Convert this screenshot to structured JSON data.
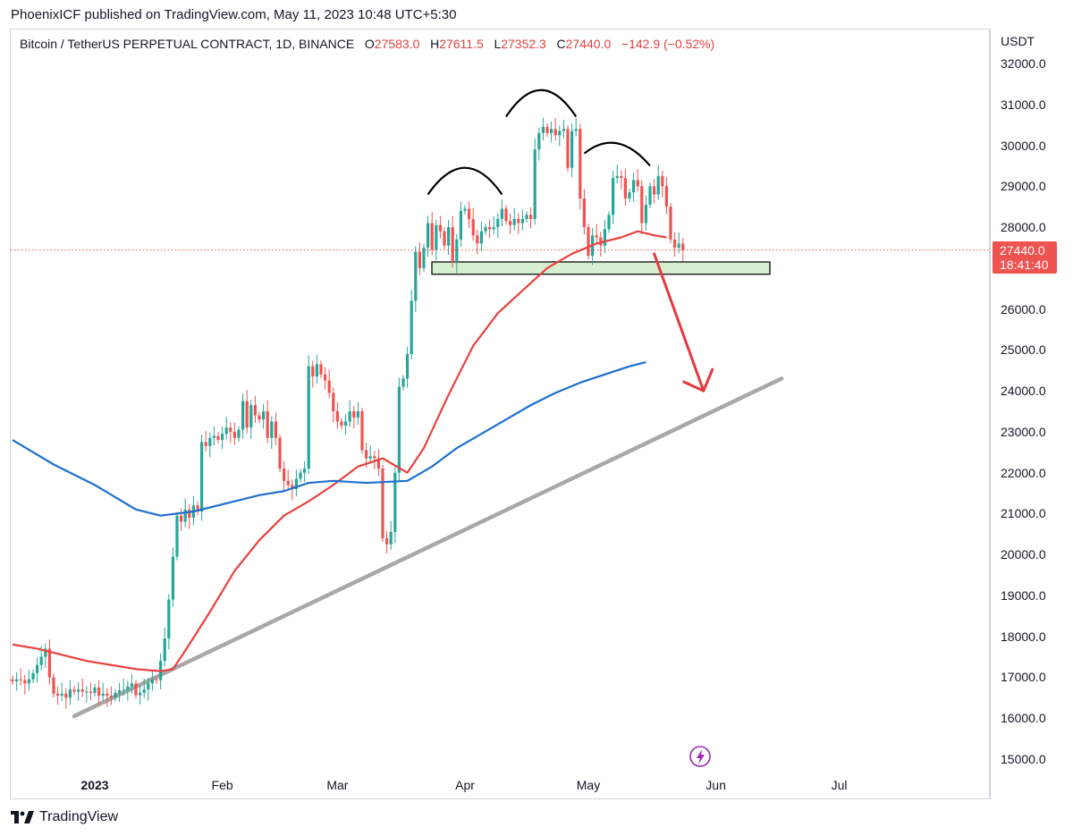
{
  "header": {
    "publish_text": "PhoenixICF published on TradingView.com, May 11, 2023 10:48 UTC+5:30"
  },
  "legend": {
    "symbol": "Bitcoin / TetherUS PERPETUAL CONTRACT, 1D, BINANCE",
    "o_key": "O",
    "o_val": "27583.0",
    "h_key": "H",
    "h_val": "27611.5",
    "l_key": "L",
    "l_val": "27352.3",
    "c_key": "C",
    "c_val": "27440.0",
    "change": "−142.9 (−0.52%)"
  },
  "price_tag": {
    "price": "27440.0",
    "countdown": "18:41:40"
  },
  "branding": {
    "label": "TradingView"
  },
  "colors": {
    "up": "#26a69a",
    "down": "#ef5350",
    "ma_fast": "#e8423e",
    "ma_slow": "#1e6fd0",
    "trendline": "#a8a8a8",
    "zone": "#d6efd1",
    "arrow": "#e53940",
    "shoulder": "#000000",
    "badge": "#9c27b0"
  },
  "chart_data": {
    "type": "candlestick",
    "currency": "USDT",
    "ylim": [
      15000,
      32000
    ],
    "y_ticks": [
      "32000.0",
      "31000.0",
      "30000.0",
      "29000.0",
      "28000.0",
      "26000.0",
      "25000.0",
      "24000.0",
      "23000.0",
      "22000.0",
      "21000.0",
      "20000.0",
      "19000.0",
      "18000.0",
      "17000.0",
      "16000.0",
      "15000.0"
    ],
    "x_ticks": [
      {
        "label": "2023",
        "date": "2023-01-01",
        "bold": true
      },
      {
        "label": "Feb",
        "date": "2023-02-01",
        "bold": false
      },
      {
        "label": "Mar",
        "date": "2023-03-01",
        "bold": false
      },
      {
        "label": "Apr",
        "date": "2023-04-01",
        "bold": false
      },
      {
        "label": "May",
        "date": "2023-05-01",
        "bold": false
      },
      {
        "label": "Jun",
        "date": "2023-06-01",
        "bold": false
      },
      {
        "label": "Jul",
        "date": "2023-07-01",
        "bold": false
      }
    ],
    "grid": false,
    "series": [
      {
        "name": "",
        "kind": "price",
        "close": [
          16900,
          16950,
          16930,
          16850,
          16950,
          17100,
          17300,
          17500,
          17700,
          17000,
          16600,
          16550,
          16600,
          16500,
          16700,
          16650,
          16700,
          16650,
          16650,
          16620,
          16750,
          16550,
          16600,
          16550,
          16500,
          16620,
          16680,
          16700,
          16780,
          16850,
          16560,
          16620,
          16700,
          16850,
          16950,
          16930,
          17400,
          17950,
          18900,
          19950,
          20950,
          20800,
          21100,
          20900,
          21200,
          21050,
          22750,
          22650,
          22850,
          22900,
          22800,
          22950,
          23100,
          23000,
          22850,
          23050,
          23750,
          23100,
          23650,
          23400,
          23300,
          23500,
          22850,
          23250,
          22850,
          22100,
          21800,
          21700,
          21600,
          21850,
          22000,
          22100,
          24600,
          24350,
          24650,
          24400,
          24250,
          23950,
          23500,
          23250,
          23150,
          23250,
          23500,
          23350,
          23500,
          22550,
          22350,
          22400,
          22350,
          22100,
          20400,
          20250,
          20550,
          22000,
          24100,
          24300,
          24900,
          26200,
          27400,
          27000,
          27500,
          28100,
          27450,
          28050,
          27900,
          27550,
          28000,
          27150,
          27700,
          28400,
          28450,
          28200,
          27800,
          27600,
          27900,
          28000,
          27950,
          28000,
          28200,
          28450,
          28150,
          28050,
          28200,
          28100,
          28200,
          28300,
          28200,
          29900,
          30300,
          30450,
          30300,
          30400,
          30250,
          30350,
          30400,
          29450,
          30350,
          30400,
          28700,
          28000,
          27300,
          27800,
          27750,
          27550,
          27950,
          28300,
          29200,
          29250,
          29200,
          28700,
          28850,
          29150,
          29000,
          28100,
          28550,
          29000,
          28800,
          29250,
          29000,
          28500,
          27700,
          27500,
          27600,
          27440
        ]
      },
      {
        "name": "",
        "kind": "moving_average_fast",
        "values": [
          [
            0,
            17800
          ],
          [
            6,
            17700
          ],
          [
            12,
            17550
          ],
          [
            18,
            17400
          ],
          [
            24,
            17300
          ],
          [
            30,
            17200
          ],
          [
            36,
            17150
          ],
          [
            39,
            17200
          ],
          [
            42,
            17650
          ],
          [
            48,
            18600
          ],
          [
            54,
            19600
          ],
          [
            60,
            20350
          ],
          [
            66,
            20950
          ],
          [
            72,
            21300
          ],
          [
            78,
            21700
          ],
          [
            84,
            22150
          ],
          [
            90,
            22350
          ],
          [
            96,
            22000
          ],
          [
            100,
            22600
          ],
          [
            106,
            23900
          ],
          [
            112,
            25100
          ],
          [
            118,
            25900
          ],
          [
            124,
            26450
          ],
          [
            130,
            27000
          ],
          [
            136,
            27350
          ],
          [
            142,
            27600
          ],
          [
            148,
            27750
          ],
          [
            152,
            27900
          ],
          [
            156,
            27800
          ],
          [
            159,
            27750
          ]
        ]
      },
      {
        "name": "",
        "kind": "moving_average_slow",
        "values": [
          [
            0,
            22800
          ],
          [
            10,
            22200
          ],
          [
            20,
            21700
          ],
          [
            30,
            21100
          ],
          [
            36,
            20950
          ],
          [
            44,
            21050
          ],
          [
            52,
            21250
          ],
          [
            60,
            21450
          ],
          [
            66,
            21550
          ],
          [
            72,
            21750
          ],
          [
            78,
            21800
          ],
          [
            86,
            21750
          ],
          [
            96,
            21800
          ],
          [
            102,
            22150
          ],
          [
            108,
            22600
          ],
          [
            114,
            22950
          ],
          [
            120,
            23300
          ],
          [
            126,
            23650
          ],
          [
            132,
            23950
          ],
          [
            138,
            24200
          ],
          [
            144,
            24400
          ],
          [
            150,
            24600
          ],
          [
            154,
            24700
          ]
        ]
      }
    ],
    "annotations": [
      {
        "kind": "support_zone",
        "y_range": [
          26850,
          27150
        ]
      },
      {
        "kind": "trendline",
        "from": [
          15,
          16050
        ],
        "to": [
          187,
          24300
        ]
      },
      {
        "kind": "projection_arrow",
        "from": [
          156,
          27350
        ],
        "to": [
          168,
          24000
        ]
      },
      {
        "kind": "arc",
        "from": [
          101,
          28800
        ],
        "to": [
          119,
          28800
        ],
        "peak": 29450
      },
      {
        "kind": "arc",
        "from": [
          120,
          30700
        ],
        "to": [
          137,
          30700
        ],
        "peak": 31350
      },
      {
        "kind": "arc",
        "from": [
          139,
          29800
        ],
        "to": [
          155,
          29500
        ],
        "peak": 30050
      }
    ]
  }
}
